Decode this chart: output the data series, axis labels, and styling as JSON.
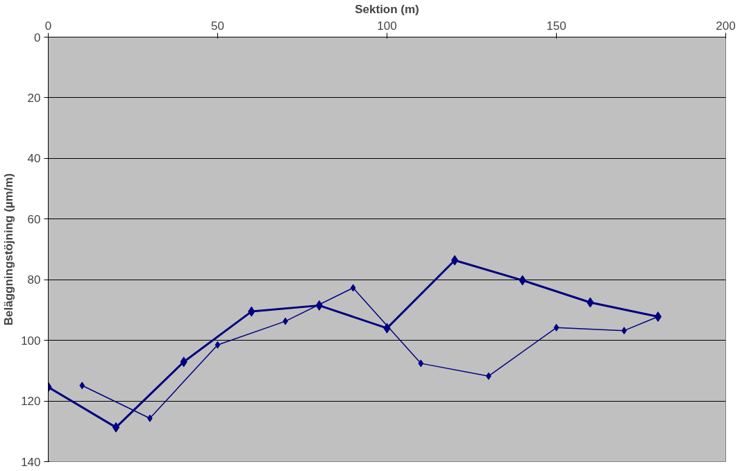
{
  "chart_data": {
    "type": "line",
    "xlabel": "Sektion (m)",
    "ylabel": "Beläggningstöjning (µm/m)",
    "series": [
      {
        "color": "#000080",
        "x": [
          0,
          20,
          40,
          60,
          80,
          100,
          120,
          140,
          160,
          180
        ],
        "values": [
          115.4,
          128.7,
          107.1,
          90.5,
          88.5,
          96.0,
          73.6,
          80.2,
          87.5,
          92.2
        ]
      },
      {
        "color": "#000080",
        "x": [
          10,
          30,
          50,
          70,
          90,
          110,
          130,
          150,
          170,
          180
        ],
        "values": [
          114.9,
          125.7,
          101.5,
          93.7,
          82.7,
          107.6,
          111.8,
          95.8,
          96.8,
          92.2
        ]
      }
    ],
    "xlim": [
      0,
      200
    ],
    "xticks": [
      0,
      50,
      100,
      150,
      200
    ],
    "ylim": [
      140,
      0
    ],
    "yticks": [
      0,
      20,
      40,
      60,
      80,
      100,
      120,
      140
    ],
    "grid": "y",
    "marker": "diamond",
    "line_style": "solid"
  }
}
